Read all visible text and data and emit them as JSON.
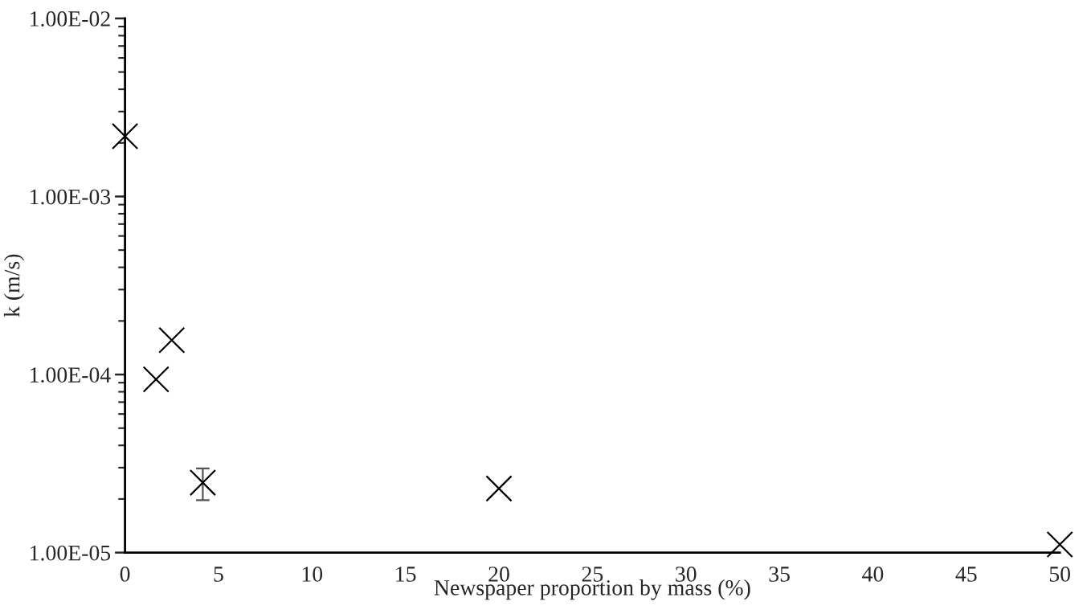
{
  "chart_data": {
    "type": "scatter",
    "xlabel": "Newspaper proportion by mass (%)",
    "ylabel": "k (m/s)",
    "x": [
      0,
      1.66,
      2.5,
      4.16,
      20,
      50
    ],
    "series": [
      {
        "color": "#000000",
        "values": [
          0.00218,
          9.4e-05,
          0.000156,
          2.47e-05,
          2.29e-05,
          1.11e-05
        ],
        "errors": [
          null,
          null,
          null,
          5e-06,
          null,
          null
        ]
      }
    ],
    "marker": "cross",
    "log": "y",
    "grid": false,
    "xlim": [
      0,
      50
    ],
    "xticks": [
      0,
      5,
      10,
      15,
      20,
      25,
      30,
      35,
      40,
      45,
      50
    ],
    "ylim": [
      1e-05,
      0.01
    ],
    "yticks": [
      {
        "value": 1e-05,
        "label": "1.00E-05"
      },
      {
        "value": 0.0001,
        "label": "1.00E-04"
      },
      {
        "value": 0.001,
        "label": "1.00E-03"
      },
      {
        "value": 0.01,
        "label": "1.00E-02"
      }
    ]
  }
}
